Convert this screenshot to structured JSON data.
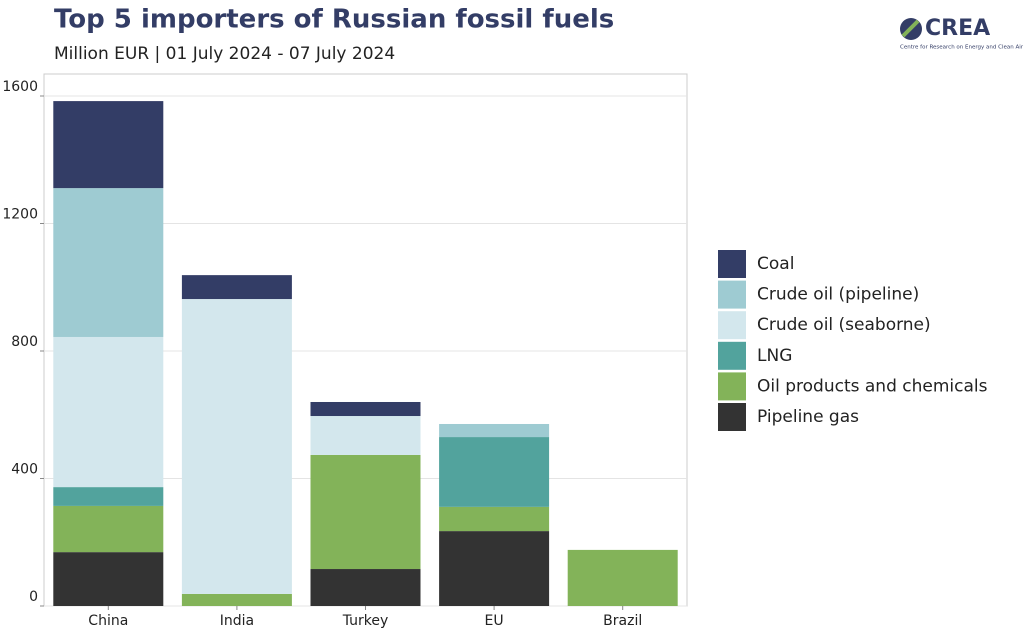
{
  "chart_data": {
    "type": "stacked-bar",
    "title": "Top 5 importers of Russian fossil fuels",
    "subtitle": "Million EUR | 01 July 2024 - 07 July 2024",
    "logo": {
      "name": "CREA",
      "tagline": "Centre for Research on Energy and Clean Air"
    },
    "categories": [
      "China",
      "India",
      "Turkey",
      "EU",
      "Brazil"
    ],
    "series": [
      {
        "name": "Coal",
        "color": "#333d66",
        "values": [
          273,
          75,
          44,
          0,
          0
        ]
      },
      {
        "name": "Crude oil (pipeline)",
        "color": "#9ecbd2",
        "values": [
          467,
          0,
          0,
          41,
          0
        ]
      },
      {
        "name": "Crude oil (seaborne)",
        "color": "#d3e7ed",
        "values": [
          471,
          925,
          122,
          0,
          0
        ]
      },
      {
        "name": "LNG",
        "color": "#52a39d",
        "values": [
          59,
          0,
          0,
          219,
          0
        ]
      },
      {
        "name": "Oil products and chemicals",
        "color": "#83b359",
        "values": [
          145,
          38,
          358,
          76,
          176
        ]
      },
      {
        "name": "Pipeline gas",
        "color": "#333333",
        "values": [
          169,
          0,
          116,
          235,
          0
        ]
      }
    ],
    "ylim": [
      0,
      1669
    ],
    "yticks": [
      0,
      400,
      800,
      1200,
      1600
    ],
    "grid": true
  }
}
